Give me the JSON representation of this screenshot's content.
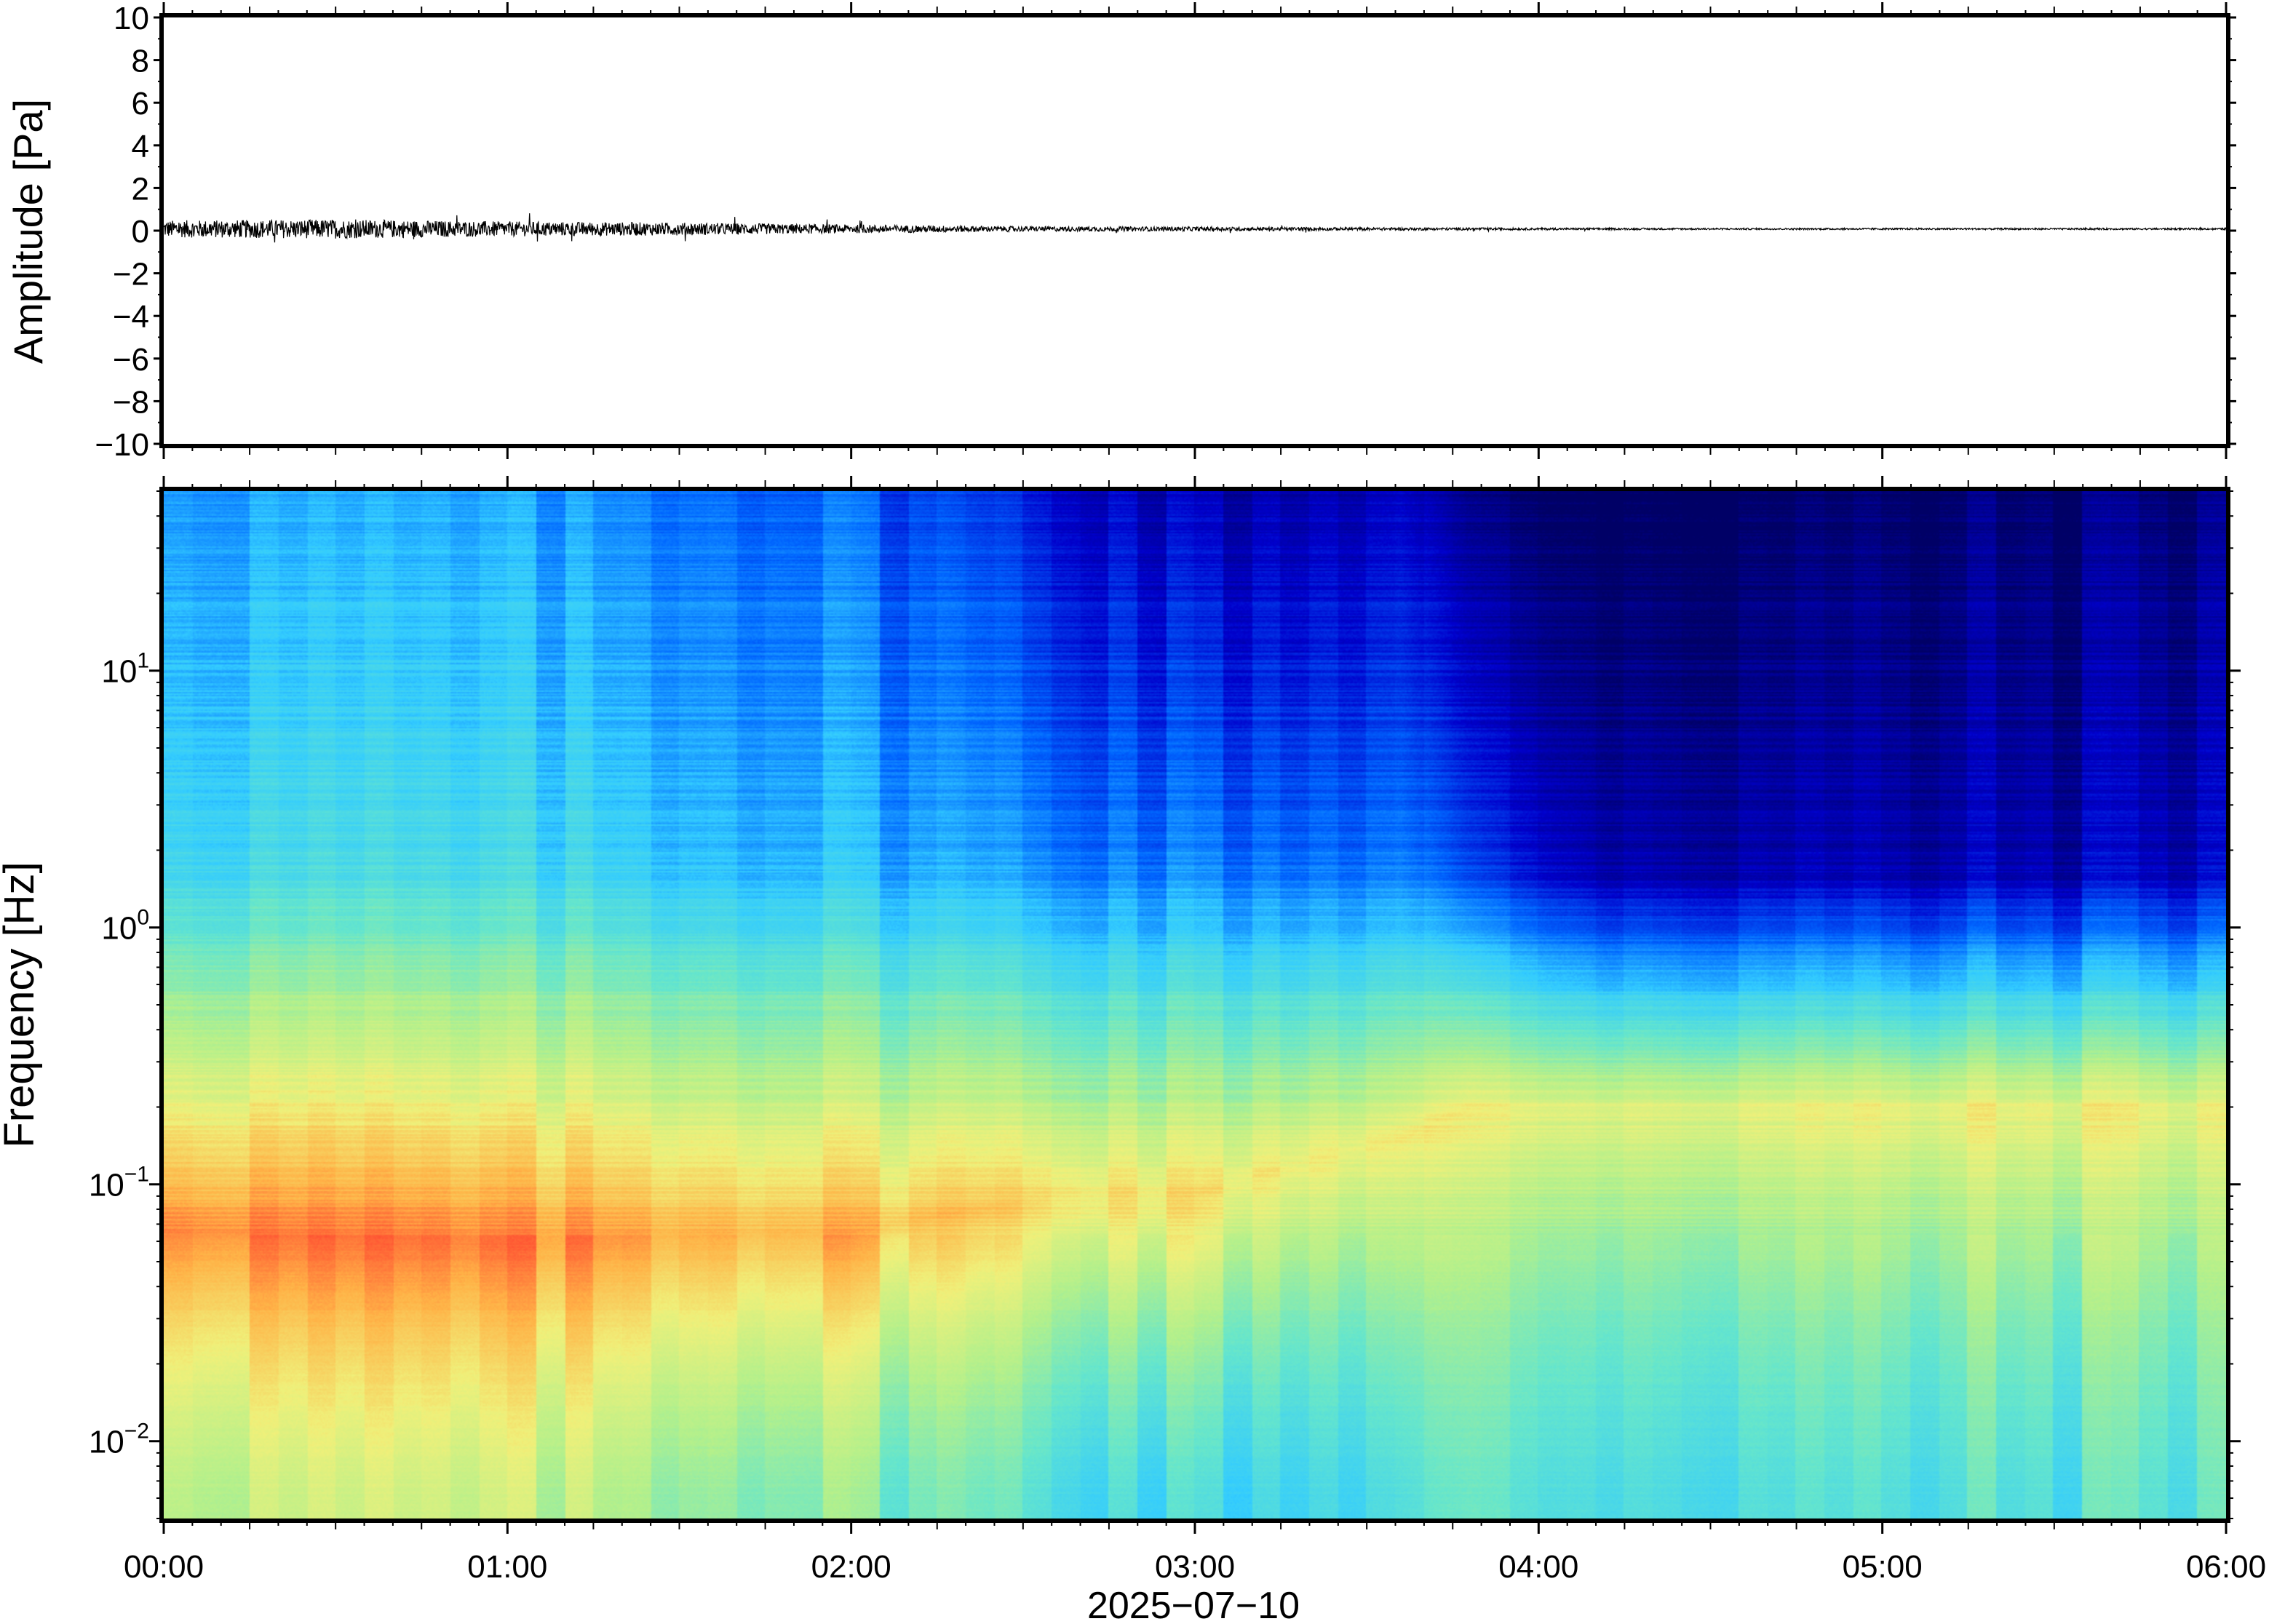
{
  "chart_data": [
    {
      "type": "line",
      "ylabel": "Amplitude [Pa]",
      "ylim": [
        -10,
        10
      ],
      "yticks": [
        "10",
        "8",
        "6",
        "4",
        "2",
        "0",
        "−2",
        "−4",
        "−6",
        "−8",
        "−10"
      ],
      "ytick_values": [
        10,
        8,
        6,
        4,
        2,
        0,
        -2,
        -4,
        -6,
        -8,
        -10
      ],
      "x_range": [
        "00:00",
        "06:00"
      ],
      "envelope": {
        "times_h": [
          0.0,
          0.5,
          1.0,
          1.5,
          2.0,
          2.5,
          3.0,
          3.5,
          4.0,
          4.5,
          5.0,
          5.5,
          6.0
        ],
        "amplitude_pa": [
          0.4,
          0.45,
          0.35,
          0.3,
          0.2,
          0.12,
          0.1,
          0.07,
          0.05,
          0.04,
          0.04,
          0.04,
          0.04
        ]
      },
      "grid": false
    },
    {
      "type": "heatmap",
      "ylabel": "Frequency [Hz]",
      "xlabel": "2025−07−10",
      "yscale": "log",
      "ylim_hz": [
        0.005,
        50
      ],
      "yticks": [
        {
          "base": "10",
          "exp": "1",
          "value": 10
        },
        {
          "base": "10",
          "exp": "0",
          "value": 1
        },
        {
          "base": "10",
          "exp": "−1",
          "value": 0.1
        },
        {
          "base": "10",
          "exp": "−2",
          "value": 0.01
        }
      ],
      "xticks": [
        "00:00",
        "01:00",
        "02:00",
        "03:00",
        "04:00",
        "05:00",
        "06:00"
      ],
      "xtick_hours": [
        0,
        1,
        2,
        3,
        4,
        5,
        6
      ],
      "colormap": "jet",
      "colormap_stops": [
        "#000066",
        "#0000cc",
        "#0066ff",
        "#33ccff",
        "#66e6cc",
        "#b3f08c",
        "#f0f07a",
        "#ffb347",
        "#ff5533",
        "#cc1111"
      ],
      "intensity_keyframes": [
        {
          "hour": 0.0,
          "low": 0.6,
          "peak": 0.86,
          "peak_hz": 0.065,
          "upper": 0.4,
          "top": 0.3
        },
        {
          "hour": 1.0,
          "low": 0.58,
          "peak": 0.83,
          "peak_hz": 0.06,
          "upper": 0.38,
          "top": 0.28
        },
        {
          "hour": 2.0,
          "low": 0.5,
          "peak": 0.78,
          "peak_hz": 0.065,
          "upper": 0.33,
          "top": 0.22
        },
        {
          "hour": 2.6,
          "low": 0.42,
          "peak": 0.72,
          "peak_hz": 0.09,
          "upper": 0.28,
          "top": 0.13
        },
        {
          "hour": 3.0,
          "low": 0.38,
          "peak": 0.7,
          "peak_hz": 0.09,
          "upper": 0.26,
          "top": 0.08
        },
        {
          "hour": 3.6,
          "low": 0.4,
          "peak": 0.67,
          "peak_hz": 0.15,
          "upper": 0.26,
          "top": 0.1
        },
        {
          "hour": 3.8,
          "low": 0.43,
          "peak": 0.66,
          "peak_hz": 0.2,
          "upper": 0.18,
          "top": 0.02
        },
        {
          "hour": 4.2,
          "low": 0.42,
          "peak": 0.65,
          "peak_hz": 0.2,
          "upper": 0.1,
          "top": 0.0
        },
        {
          "hour": 5.0,
          "low": 0.4,
          "peak": 0.65,
          "peak_hz": 0.2,
          "upper": 0.08,
          "top": 0.0
        },
        {
          "hour": 5.6,
          "low": 0.42,
          "peak": 0.66,
          "peak_hz": 0.2,
          "upper": 0.1,
          "top": 0.02
        },
        {
          "hour": 6.0,
          "low": 0.45,
          "peak": 0.66,
          "peak_hz": 0.2,
          "upper": 0.12,
          "top": 0.04
        }
      ]
    }
  ]
}
